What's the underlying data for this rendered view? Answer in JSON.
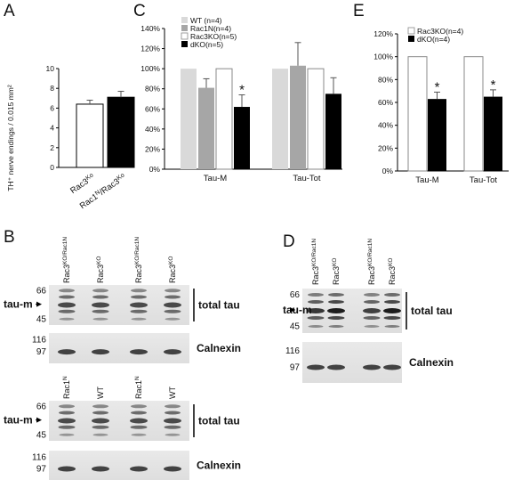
{
  "panels": {
    "A": "A",
    "B": "B",
    "C": "C",
    "D": "D",
    "E": "E"
  },
  "chart_data": [
    {
      "panel": "A",
      "type": "bar",
      "ylabel": "TH⁺ nerve endings / 0.015 mm²",
      "ylim": [
        0,
        10
      ],
      "yticks": [
        "0",
        "2",
        "4",
        "6",
        "8",
        "10"
      ],
      "categories": [
        "Rac3KO",
        "Rac1N/Rac3KO"
      ],
      "category_labels": [
        "Rac3Ko",
        "Rac1N/Rac3Ko"
      ],
      "values": [
        6.4,
        7.1
      ],
      "errors": [
        0.4,
        0.6
      ],
      "colors": [
        "#ffffff",
        "#000000"
      ]
    },
    {
      "panel": "C",
      "type": "bar",
      "ylim": [
        0,
        140
      ],
      "yticks": [
        "0%",
        "20%",
        "40%",
        "60%",
        "80%",
        "100%",
        "120%",
        "140%"
      ],
      "categories": [
        "Tau-M",
        "Tau-Tot"
      ],
      "series": [
        {
          "name": "WT (n=4)",
          "values": [
            100,
            100
          ],
          "errors": [
            0,
            0
          ],
          "color": "#d9d9d9"
        },
        {
          "name": "Rac1N(n=4)",
          "values": [
            81,
            103
          ],
          "errors": [
            9,
            23
          ],
          "color": "#a6a6a6"
        },
        {
          "name": "Rac3KO(n=5)",
          "values": [
            100,
            100
          ],
          "errors": [
            0,
            0
          ],
          "color": "#ffffff"
        },
        {
          "name": "dKO(n=5)",
          "values": [
            62,
            75
          ],
          "errors": [
            12,
            16
          ],
          "color": "#000000"
        }
      ],
      "annotations": [
        {
          "category": "Tau-M",
          "series": "dKO(n=5)",
          "text": "*"
        }
      ]
    },
    {
      "panel": "E",
      "type": "bar",
      "ylim": [
        0,
        120
      ],
      "yticks": [
        "0%",
        "20%",
        "40%",
        "60%",
        "80%",
        "100%",
        "120%"
      ],
      "categories": [
        "Tau-M",
        "Tau-Tot"
      ],
      "series": [
        {
          "name": "Rac3KO(n=4)",
          "values": [
            100,
            100
          ],
          "errors": [
            0,
            0
          ],
          "color": "#ffffff"
        },
        {
          "name": "dKO(n=4)",
          "values": [
            63,
            65
          ],
          "errors": [
            6,
            6
          ],
          "color": "#000000"
        }
      ],
      "annotations": [
        {
          "category": "Tau-M",
          "series": "dKO(n=4)",
          "text": "*"
        },
        {
          "category": "Tau-Tot",
          "series": "dKO(n=4)",
          "text": "*"
        }
      ]
    }
  ],
  "blots": {
    "B_top": {
      "lanes": [
        "Rac3KO/Rac1N",
        "Rac3KO",
        "Rac3KO/Rac1N",
        "Rac3KO"
      ],
      "lane_main": [
        "Rac3",
        "Rac3",
        "Rac3",
        "Rac3"
      ],
      "lane_sup": [
        "KO/Rac1N",
        "KO",
        "KO/Rac1N",
        "KO"
      ],
      "mw_top": [
        "66",
        "45"
      ],
      "mw_bottom": [
        "116",
        "97"
      ],
      "marker": "tau-m",
      "label_top": "total tau",
      "label_bottom": "Calnexin"
    },
    "B_bottom": {
      "lanes": [
        "Rac1N",
        "WT",
        "Rac1N",
        "WT"
      ],
      "lane_main": [
        "Rac1",
        "WT",
        "Rac1",
        "WT"
      ],
      "lane_sup": [
        "N",
        "",
        "N",
        ""
      ],
      "mw_top": [
        "66",
        "45"
      ],
      "mw_bottom": [
        "116",
        "97"
      ],
      "marker": "tau-m",
      "label_top": "total tau",
      "label_bottom": "Calnexin"
    },
    "D": {
      "lanes": [
        "Rac3KO/Rac1N",
        "Rac3KO",
        "Rac3KO/Rac1N",
        "Rac3KO"
      ],
      "lane_main": [
        "Rac3",
        "Rac3",
        "Rac3",
        "Rac3"
      ],
      "lane_sup": [
        "KO/Rac1N",
        "KO",
        "KO/Rac1N",
        "KO"
      ],
      "mw_top": [
        "66",
        "45"
      ],
      "mw_bottom": [
        "116",
        "97"
      ],
      "marker": "tau-m",
      "label_top": "total tau",
      "label_bottom": "Calnexin"
    }
  }
}
